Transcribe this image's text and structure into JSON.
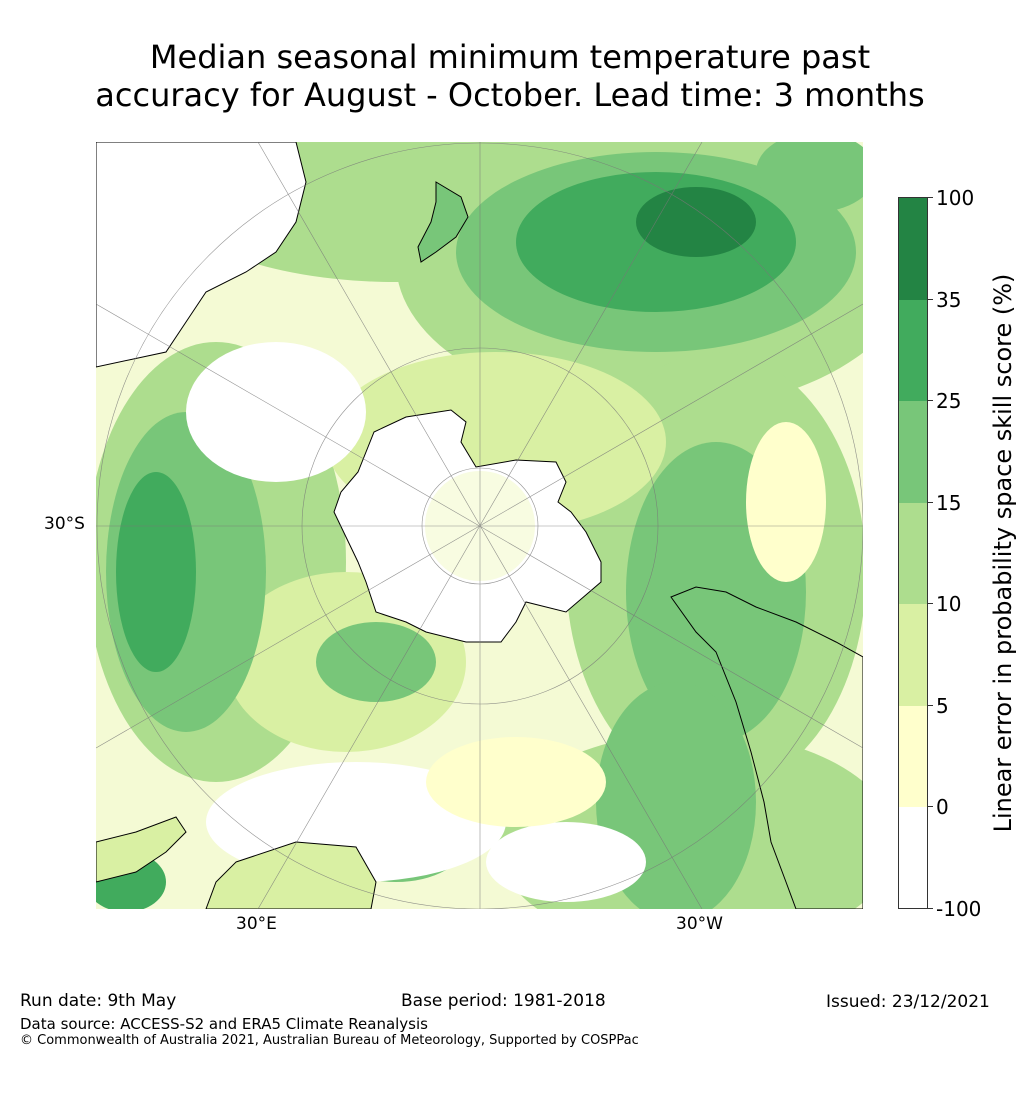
{
  "title_line1": "Median seasonal minimum temperature past",
  "title_line2": "accuracy for August - October. Lead time: 3 months",
  "map": {
    "projection": "south-polar-stereographic",
    "lat_label": "30°S",
    "lon_labels": [
      "30°E",
      "30°W"
    ]
  },
  "colorbar": {
    "label": "Linear error in probability space skill score (%)",
    "ticks": [
      "100",
      "35",
      "25",
      "15",
      "10",
      "5",
      "0",
      "-100"
    ],
    "colors": [
      "#238444",
      "#41ab5d",
      "#78c679",
      "#addd8e",
      "#d9f0a3",
      "#ffffcc",
      "#ffffff"
    ]
  },
  "footer": {
    "run_date": "Run date: 9th May",
    "base_period": "Base period: 1981-2018",
    "issued": "Issued: 23/12/2021",
    "data_source": "Data source: ACCESS-S2 and ERA5 Climate Reanalysis",
    "copyright": "© Commonwealth of Australia 2021, Australian Bureau of Meteorology, Supported by COSPPac"
  }
}
